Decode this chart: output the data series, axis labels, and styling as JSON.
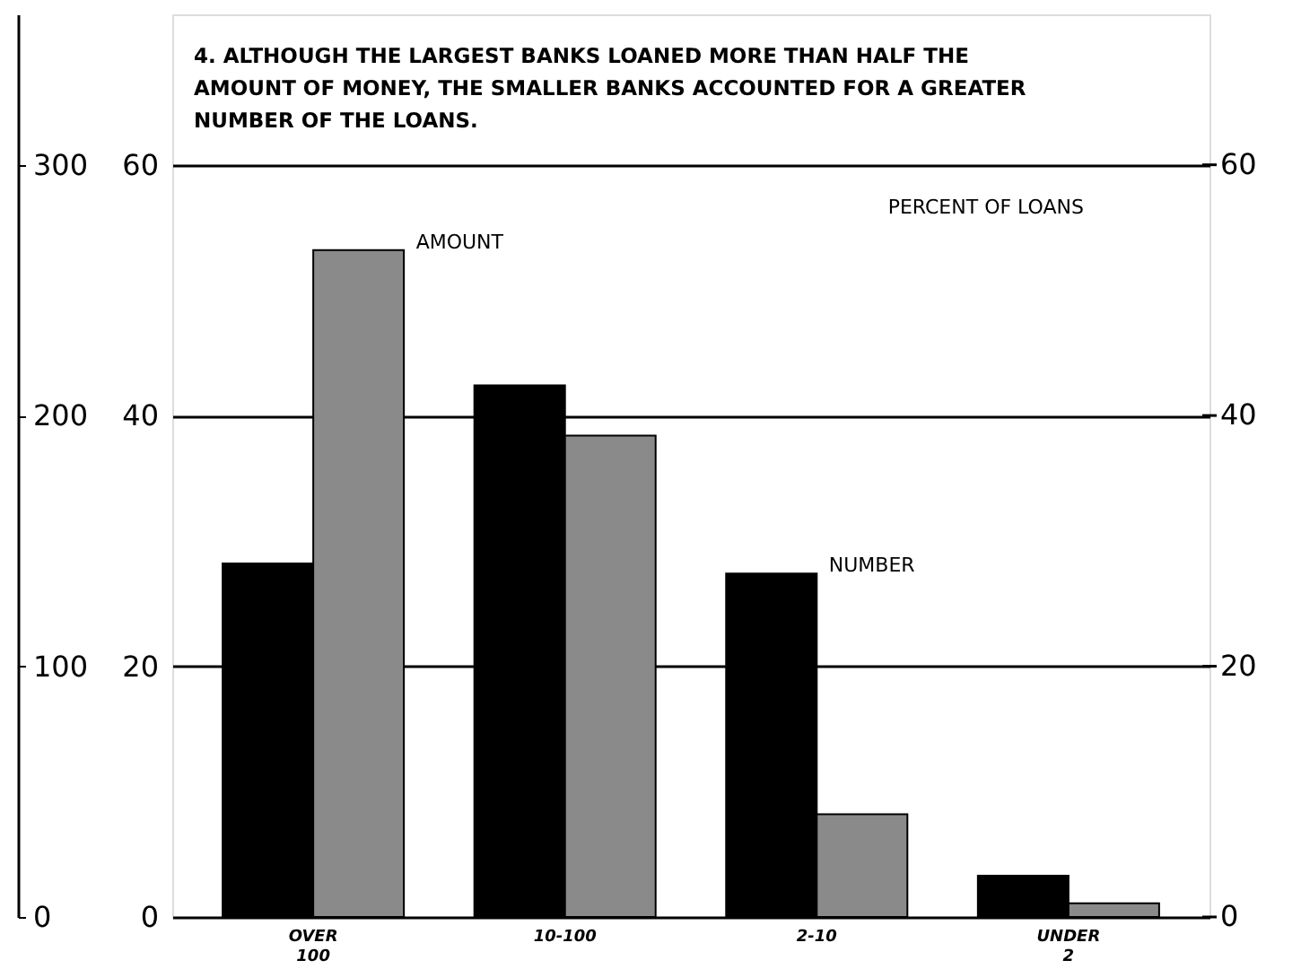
{
  "chart_data": {
    "type": "bar",
    "title": "4. ALTHOUGH THE LARGEST BANKS LOANED MORE THAN HALF THE\nAMOUNT OF MONEY, THE SMALLER BANKS ACCOUNTED FOR A GREATER\nNUMBER OF THE LOANS.",
    "categories": [
      "OVER 100",
      "10-100",
      "2-10",
      "UNDER 2"
    ],
    "series": [
      {
        "name": "NUMBER",
        "color": "#000000",
        "values": [
          28.2,
          42.4,
          27.4,
          3.3
        ]
      },
      {
        "name": "AMOUNT",
        "color": "#8a8a8a",
        "values": [
          53.2,
          38.4,
          8.2,
          1.1
        ]
      }
    ],
    "ylim": [
      0,
      72
    ],
    "yticks": [
      0,
      20,
      40,
      60
    ],
    "y2lim": [
      0,
      72
    ],
    "y2ticks": [
      0,
      20,
      40,
      60
    ],
    "y3lim": [
      0,
      360
    ],
    "y3ticks": [
      0,
      100,
      200,
      300
    ],
    "grid": "y",
    "annotations": [
      "PERCENT OF LOANS"
    ]
  }
}
